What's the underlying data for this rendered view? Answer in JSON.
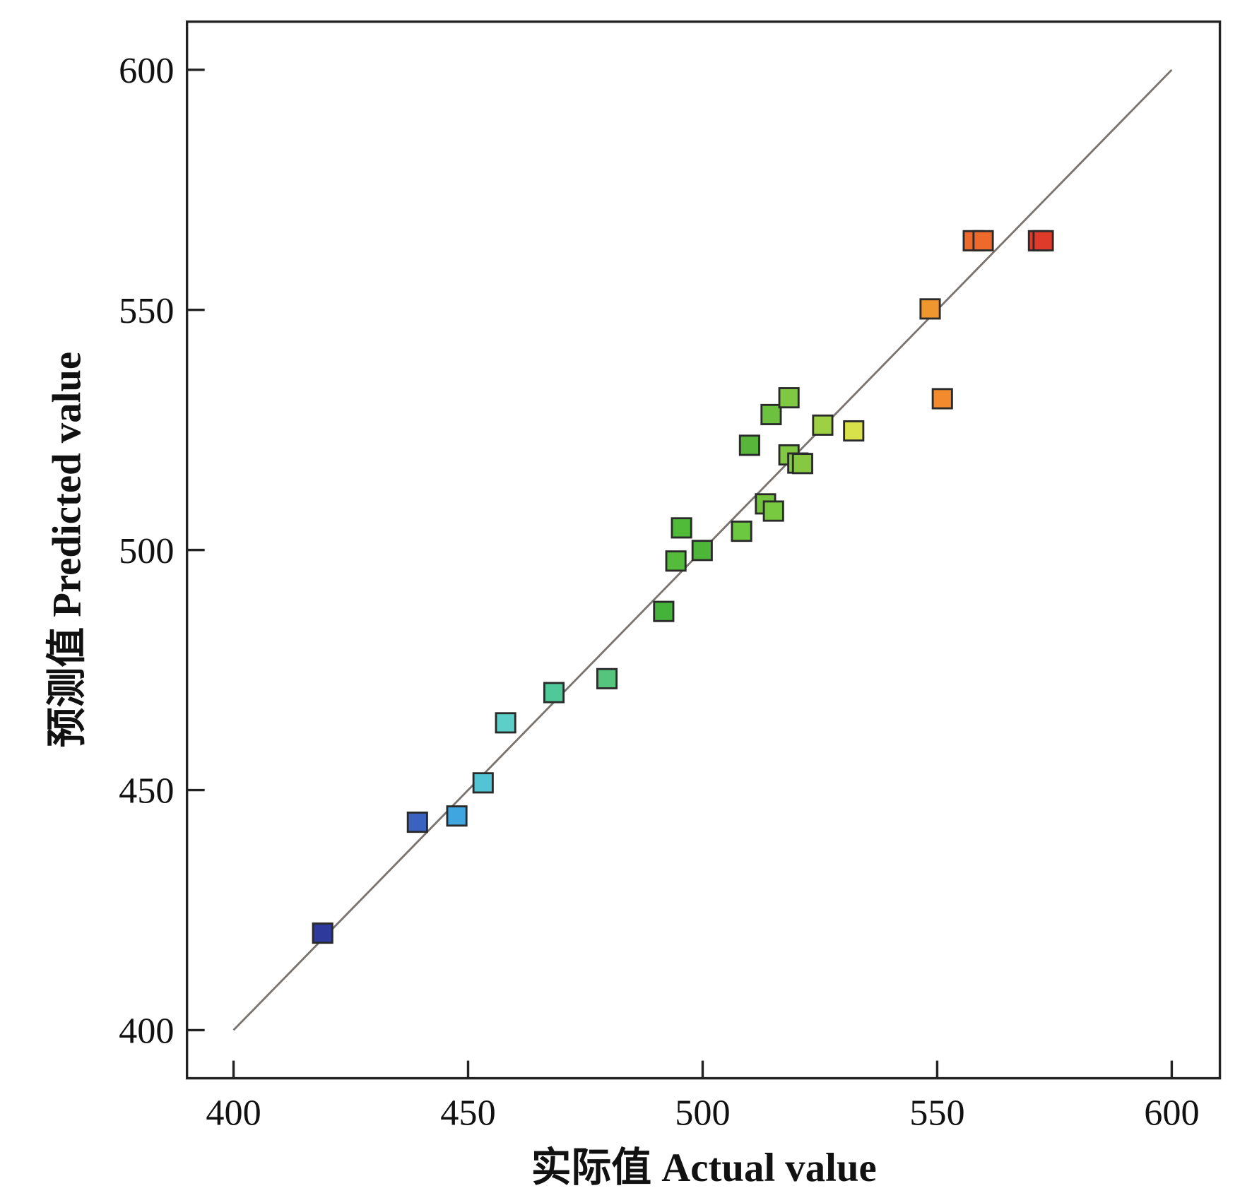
{
  "chart_data": {
    "type": "scatter",
    "xlabel": "实际值 Actual value",
    "ylabel": "预测值 Predicted value",
    "xlim": [
      400,
      600
    ],
    "ylim": [
      400,
      600
    ],
    "xticks": [
      "400",
      "450",
      "500",
      "550",
      "600"
    ],
    "yticks": [
      "400",
      "450",
      "500",
      "550",
      "600"
    ],
    "grid": false,
    "reference_line": {
      "from": [
        400,
        400
      ],
      "to": [
        600,
        600
      ],
      "color": "#7a7470"
    },
    "marker": "square",
    "points": [
      {
        "x": 419.0,
        "y": 420.2,
        "color": "#2e3a9c"
      },
      {
        "x": 439.2,
        "y": 443.3,
        "color": "#3a62c0"
      },
      {
        "x": 447.6,
        "y": 444.6,
        "color": "#3fa6e0"
      },
      {
        "x": 453.2,
        "y": 451.5,
        "color": "#52c4d6"
      },
      {
        "x": 458.0,
        "y": 464.0,
        "color": "#5ccfc8"
      },
      {
        "x": 468.3,
        "y": 470.3,
        "color": "#4fc89a"
      },
      {
        "x": 479.6,
        "y": 473.2,
        "color": "#55c47c"
      },
      {
        "x": 491.7,
        "y": 487.2,
        "color": "#45b23a"
      },
      {
        "x": 494.3,
        "y": 497.7,
        "color": "#55bb3a"
      },
      {
        "x": 495.5,
        "y": 504.6,
        "color": "#4fbb38"
      },
      {
        "x": 499.9,
        "y": 499.9,
        "color": "#4db538"
      },
      {
        "x": 508.3,
        "y": 503.9,
        "color": "#6cc83e"
      },
      {
        "x": 510.0,
        "y": 521.8,
        "color": "#58b63a"
      },
      {
        "x": 513.4,
        "y": 509.6,
        "color": "#72c43e"
      },
      {
        "x": 515.1,
        "y": 508.1,
        "color": "#78c840"
      },
      {
        "x": 514.6,
        "y": 528.2,
        "color": "#6cc23e"
      },
      {
        "x": 518.4,
        "y": 531.7,
        "color": "#7ec842"
      },
      {
        "x": 518.4,
        "y": 519.8,
        "color": "#80c842"
      },
      {
        "x": 520.3,
        "y": 518.1,
        "color": "#84ca42"
      },
      {
        "x": 521.3,
        "y": 518.0,
        "color": "#86c842"
      },
      {
        "x": 525.6,
        "y": 526.0,
        "color": "#9ed044"
      },
      {
        "x": 532.2,
        "y": 524.8,
        "color": "#d8e04a"
      },
      {
        "x": 548.5,
        "y": 550.2,
        "color": "#f0962e"
      },
      {
        "x": 551.1,
        "y": 531.5,
        "color": "#f28a2e"
      },
      {
        "x": 557.7,
        "y": 564.4,
        "color": "#ee6a2c"
      },
      {
        "x": 559.8,
        "y": 564.4,
        "color": "#ee6a2c"
      },
      {
        "x": 571.6,
        "y": 564.4,
        "color": "#e03a2a"
      },
      {
        "x": 572.6,
        "y": 564.4,
        "color": "#e03a2a"
      }
    ]
  }
}
